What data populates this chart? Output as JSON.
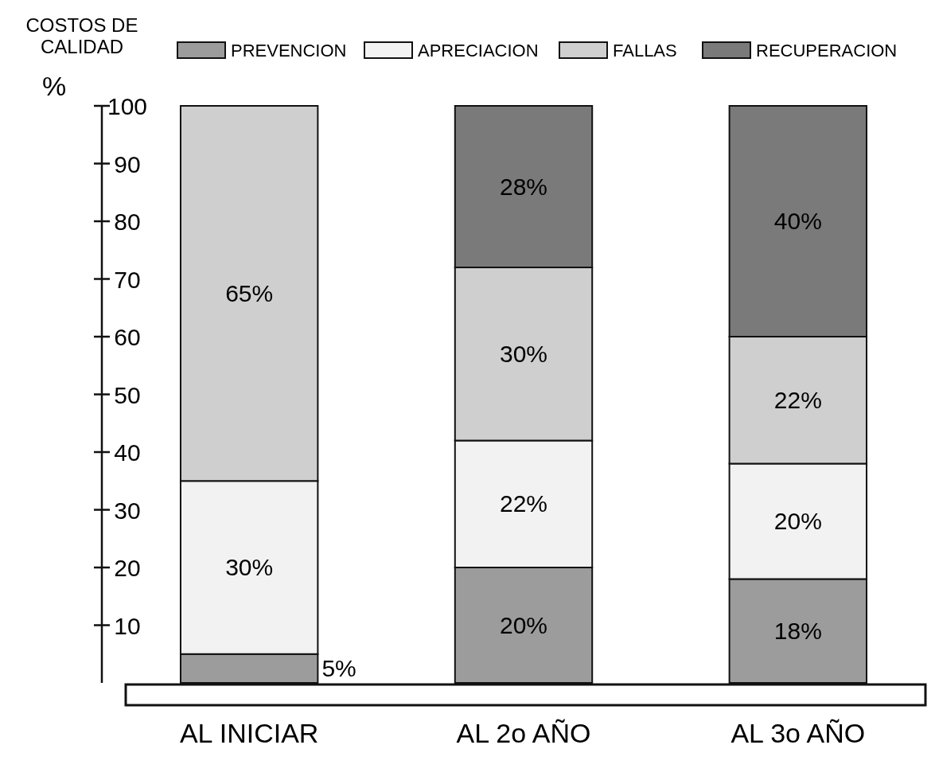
{
  "chart_data": {
    "type": "bar",
    "title": "COSTOS DE CALIDAD",
    "ylabel": "%",
    "stacked": true,
    "legend": "top",
    "grid": false,
    "categories": [
      "AL INICIAR",
      "AL 2o AÑO",
      "AL 3o AÑO"
    ],
    "ylim": [
      0,
      100
    ],
    "yticks": [
      10,
      20,
      30,
      40,
      50,
      60,
      70,
      80,
      90,
      100
    ],
    "series": [
      {
        "name": "PREVENCION",
        "color": "#9c9c9c",
        "values": [
          5,
          20,
          18
        ],
        "value_labels": [
          "5%",
          "20%",
          "18%"
        ]
      },
      {
        "name": "APRECIACION",
        "color": "#f2f2f2",
        "values": [
          30,
          22,
          20
        ],
        "value_labels": [
          "30%",
          "22%",
          "20%"
        ]
      },
      {
        "name": "FALLAS",
        "color": "#cfcfcf",
        "values": [
          65,
          30,
          22
        ],
        "value_labels": [
          "65%",
          "30%",
          "22%"
        ]
      },
      {
        "name": "RECUPERACION",
        "color": "#7a7a7a",
        "values": [
          null,
          28,
          40
        ],
        "value_labels": [
          null,
          "28%",
          "40%"
        ]
      }
    ]
  }
}
